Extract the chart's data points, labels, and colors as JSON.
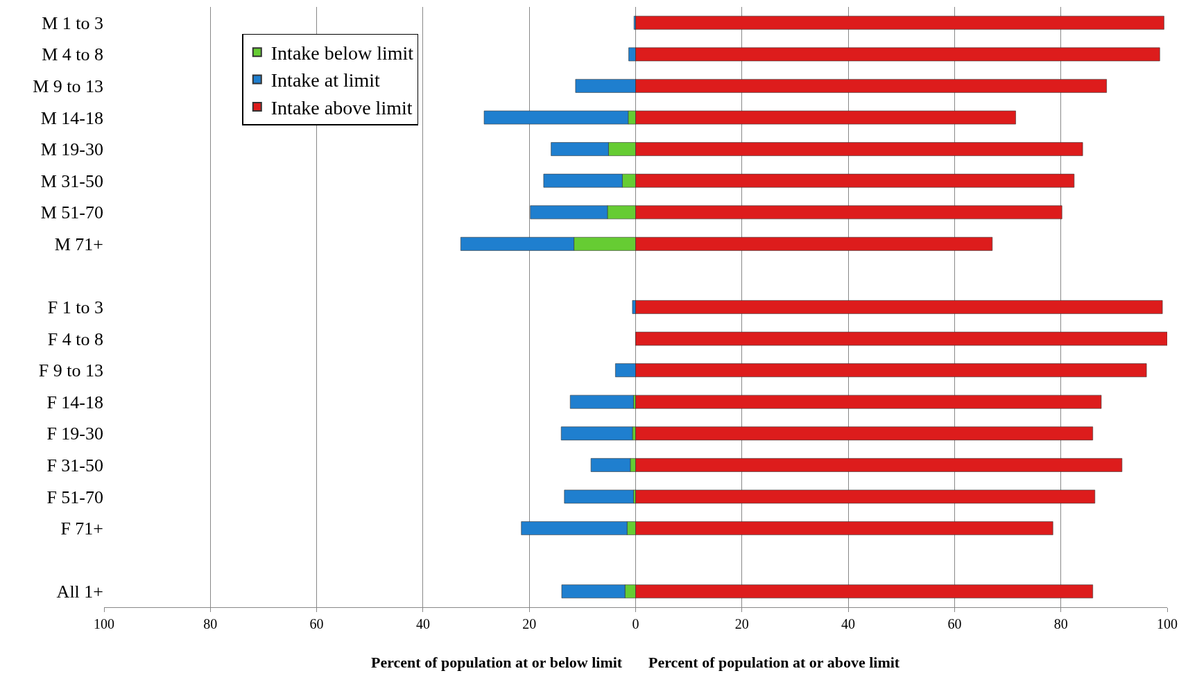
{
  "chart_data": {
    "type": "bar",
    "orientation": "horizontal",
    "stacked": true,
    "categories": [
      "M 1 to 3",
      "M 4 to 8",
      "M 9 to 13",
      "M 14-18",
      "M 19-30",
      "M 31-50",
      "M 51-70",
      "M 71+",
      null,
      "F 1 to 3",
      "F 4 to 8",
      "F 9 to 13",
      "F 14-18",
      "F 19-30",
      "F 31-50",
      "F 51-70",
      "F 71+",
      null,
      "All 1+"
    ],
    "series": [
      {
        "name": "Intake below limit",
        "color": "#66cc33",
        "values": [
          0,
          0,
          0,
          -1.4,
          -5.1,
          -2.5,
          -5.3,
          -11.6,
          null,
          0,
          0,
          0,
          -0.4,
          -0.6,
          -1.0,
          -0.4,
          -1.6,
          null,
          -2.0
        ]
      },
      {
        "name": "Intake at limit",
        "color": "#1f7fcf",
        "values": [
          -0.3,
          -1.3,
          -11.3,
          -27.1,
          -10.8,
          -14.8,
          -14.5,
          -21.3,
          null,
          -0.6,
          0,
          -3.8,
          -11.9,
          -13.4,
          -7.4,
          -13.0,
          -19.9,
          null,
          -11.9
        ]
      },
      {
        "name": "Intake above limit",
        "color": "#dd1c1c",
        "values": [
          99.4,
          98.6,
          88.6,
          71.5,
          84.1,
          82.5,
          80.2,
          67.1,
          null,
          99.1,
          100,
          96.1,
          87.6,
          86.0,
          91.5,
          86.4,
          78.5,
          null,
          86.0
        ]
      }
    ],
    "xlim": [
      -100,
      100
    ],
    "xticks": [
      {
        "value": -100,
        "label": "100"
      },
      {
        "value": -80,
        "label": "80"
      },
      {
        "value": -60,
        "label": "60"
      },
      {
        "value": -40,
        "label": "40"
      },
      {
        "value": -20,
        "label": "20"
      },
      0,
      20,
      40,
      60,
      80,
      100
    ],
    "xlabel": "Percent of population at or below limit",
    "annotations": [
      "Percent of population at or above limit"
    ],
    "grid": "x",
    "legend": "top left"
  }
}
